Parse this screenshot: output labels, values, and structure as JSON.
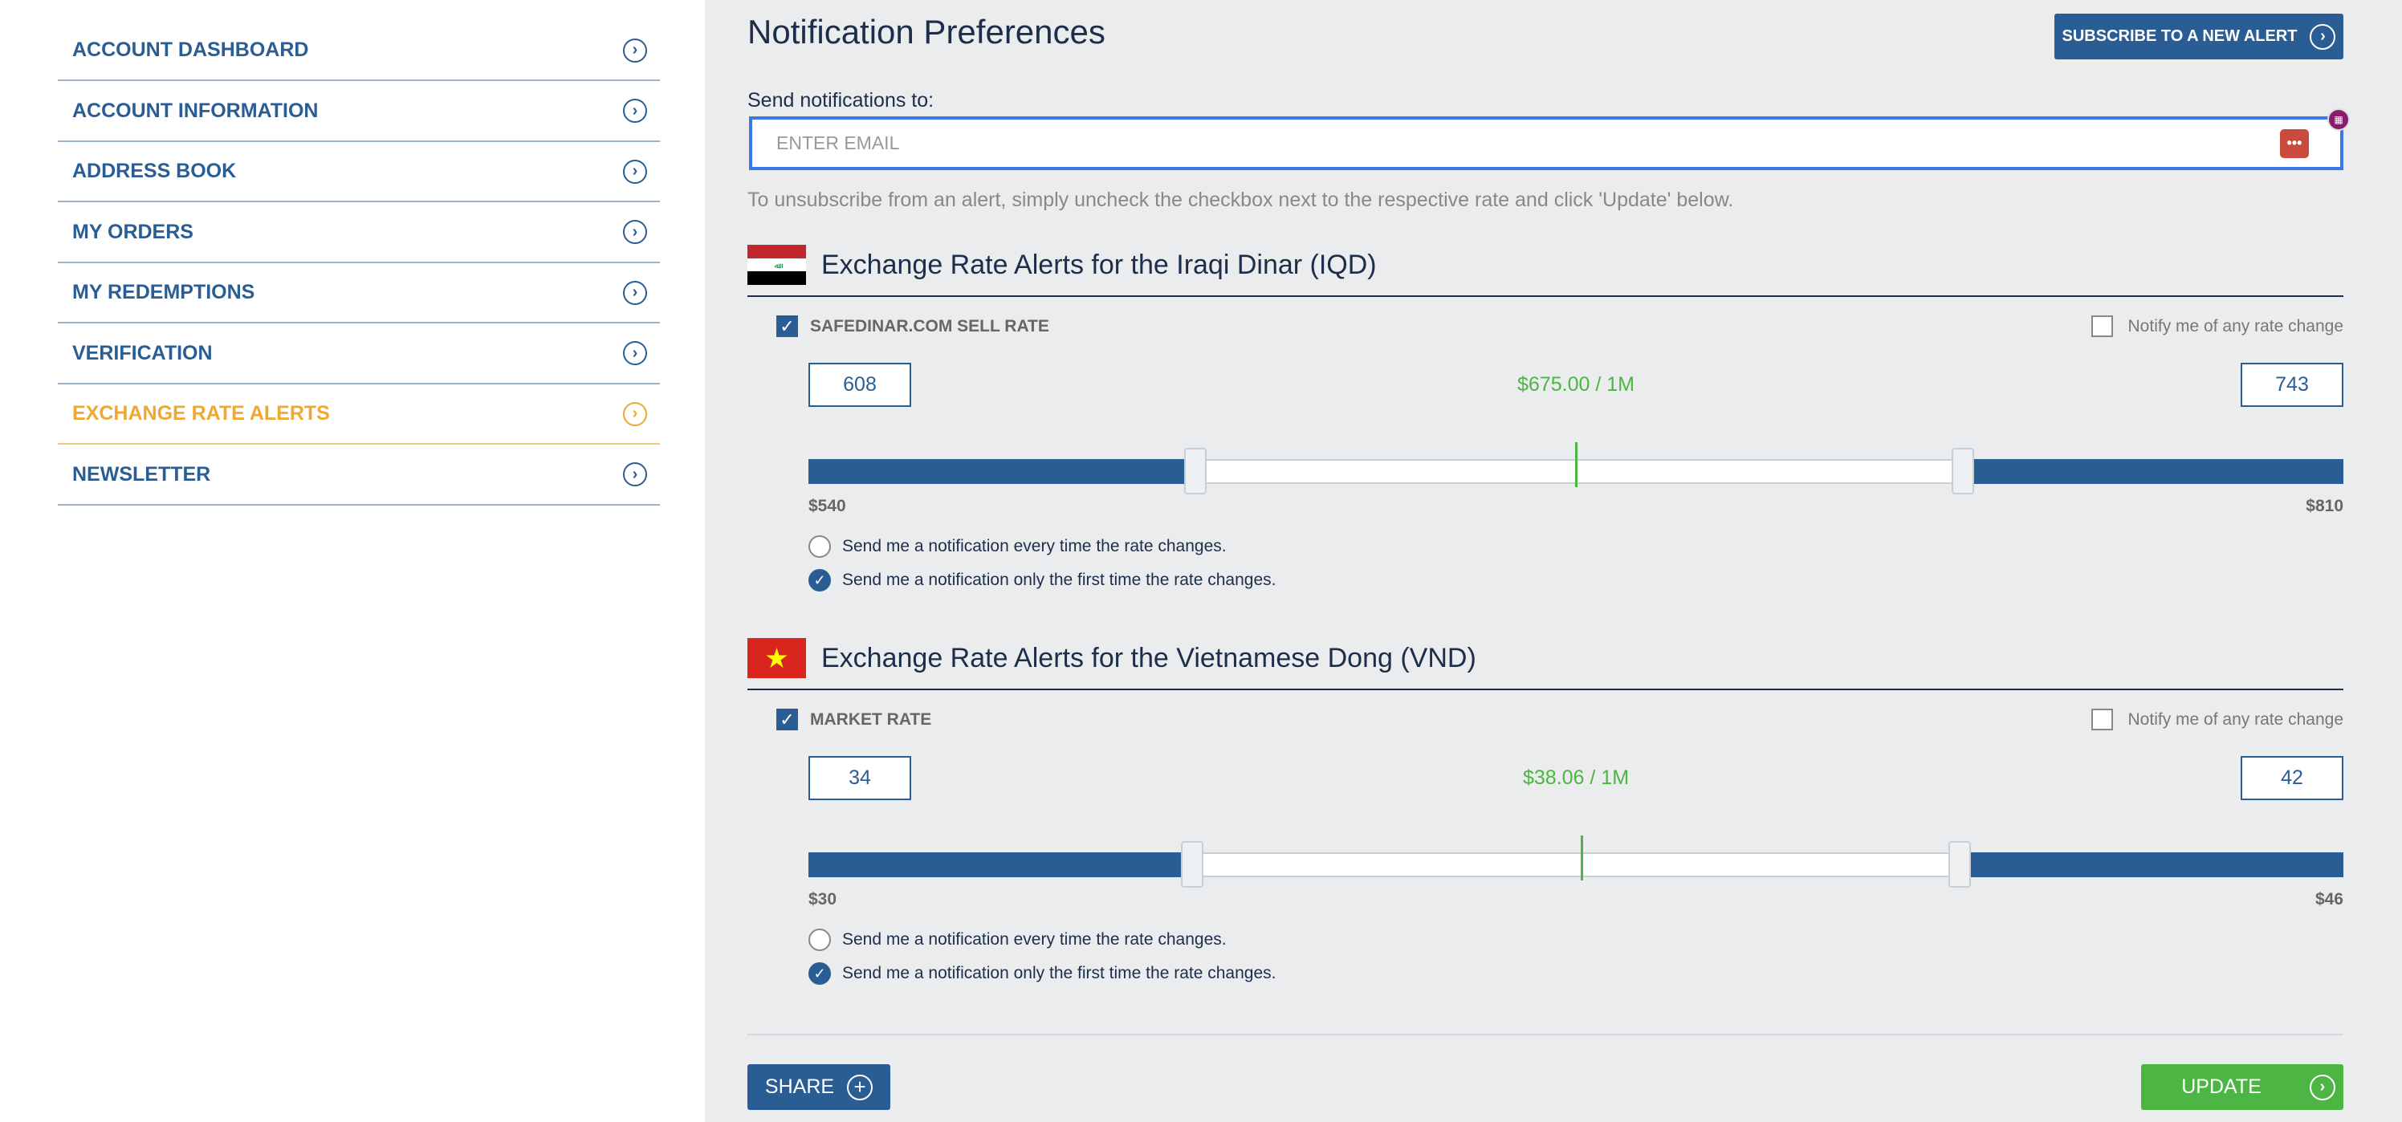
{
  "sidebar": {
    "items": [
      {
        "label": "ACCOUNT DASHBOARD",
        "active": false
      },
      {
        "label": "ACCOUNT INFORMATION",
        "active": false
      },
      {
        "label": "ADDRESS BOOK",
        "active": false
      },
      {
        "label": "MY ORDERS",
        "active": false
      },
      {
        "label": "MY REDEMPTIONS",
        "active": false
      },
      {
        "label": "VERIFICATION",
        "active": false
      },
      {
        "label": "EXCHANGE RATE ALERTS",
        "active": true
      },
      {
        "label": "NEWSLETTER",
        "active": false
      }
    ]
  },
  "header": {
    "title": "Notification Preferences",
    "subscribe_label": "SUBSCRIBE TO A NEW ALERT"
  },
  "email": {
    "label": "Send notifications to:",
    "placeholder": "ENTER EMAIL",
    "value": ""
  },
  "help_text": "To unsubscribe from an alert, simply uncheck the checkbox next to the respective rate and click 'Update' below.",
  "sections": [
    {
      "heading": "Exchange Rate Alerts for the Iraqi Dinar (IQD)",
      "flag": "iraq",
      "rate_label": "SAFEDINAR.COM SELL RATE",
      "rate_checked": true,
      "notify_label": "Notify me of any rate change",
      "notify_checked": false,
      "low": "608",
      "high": "743",
      "current_text": "$675.00 / 1M",
      "current": 675,
      "min": 540,
      "max": 810,
      "min_label": "$540",
      "max_label": "$810",
      "radio1": "Send me a notification every time the rate changes.",
      "radio2": "Send me a notification only the first time the rate changes.",
      "selected_radio": 2
    },
    {
      "heading": "Exchange Rate Alerts for the Vietnamese Dong (VND)",
      "flag": "vietnam",
      "rate_label": "MARKET RATE",
      "rate_checked": true,
      "notify_label": "Notify me of any rate change",
      "notify_checked": false,
      "low": "34",
      "high": "42",
      "current_text": "$38.06 / 1M",
      "current": 38.06,
      "min": 30,
      "max": 46,
      "min_label": "$30",
      "max_label": "$46",
      "radio1": "Send me a notification every time the rate changes.",
      "radio2": "Send me a notification only the first time the rate changes.",
      "selected_radio": 2
    }
  ],
  "footer": {
    "share_label": "SHARE",
    "update_label": "UPDATE"
  },
  "colors": {
    "primary": "#2a5d94",
    "accent": "#f0a830",
    "green": "#4cb543",
    "focus": "#3b78e7"
  }
}
